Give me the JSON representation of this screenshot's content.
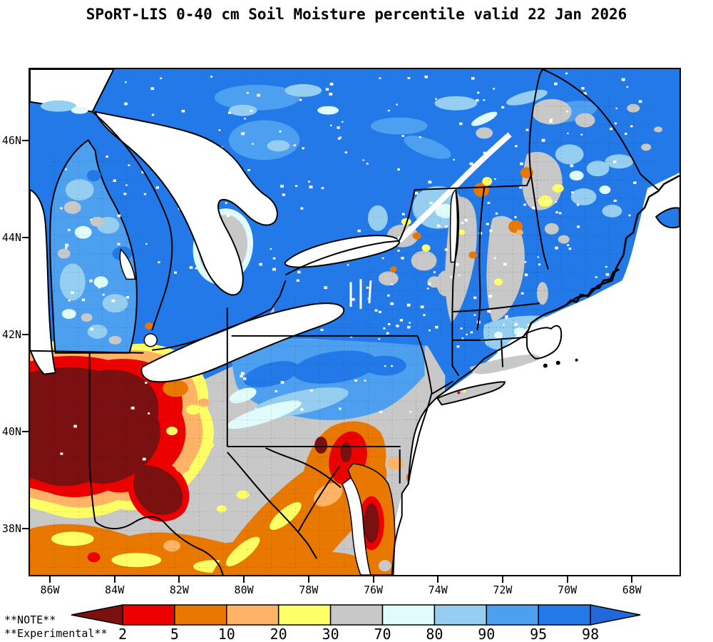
{
  "title": "SPoRT-LIS 0-40 cm Soil Moisture percentile valid 22 Jan 2026",
  "axes": {
    "lat_ticks": [
      "46N",
      "44N",
      "42N",
      "40N",
      "38N"
    ],
    "lon_ticks": [
      "86W",
      "84W",
      "82W",
      "80W",
      "78W",
      "76W",
      "74W",
      "72W",
      "70W",
      "68W"
    ]
  },
  "colorbar": {
    "labels": [
      "2",
      "5",
      "10",
      "20",
      "30",
      "70",
      "80",
      "90",
      "95",
      "98"
    ],
    "segment_colors": [
      "#ED0000",
      "#E87800",
      "#FFB366",
      "#FFFF66",
      "#C8C8C8",
      "#E0FBFB",
      "#96CEF2",
      "#4D9FEF",
      "#2379E8"
    ],
    "under_arrow_color": "#7A1010",
    "over_arrow_color": "#2268D8",
    "note_line1": "**NOTE**",
    "note_line2": "**Experimental**"
  },
  "map_colors": {
    "percentile_98_plus": "#2379E8",
    "percentile_95": "#4D9FEF",
    "percentile_90": "#96CEF2",
    "percentile_80": "#E0FBFB",
    "percentile_mid": "#C8C8C8",
    "percentile_20": "#FFFF66",
    "percentile_10": "#FFB366",
    "percentile_5": "#E87800",
    "percentile_2": "#ED0000",
    "percentile_lowest": "#7A1010",
    "water": "#FFFFFF"
  }
}
